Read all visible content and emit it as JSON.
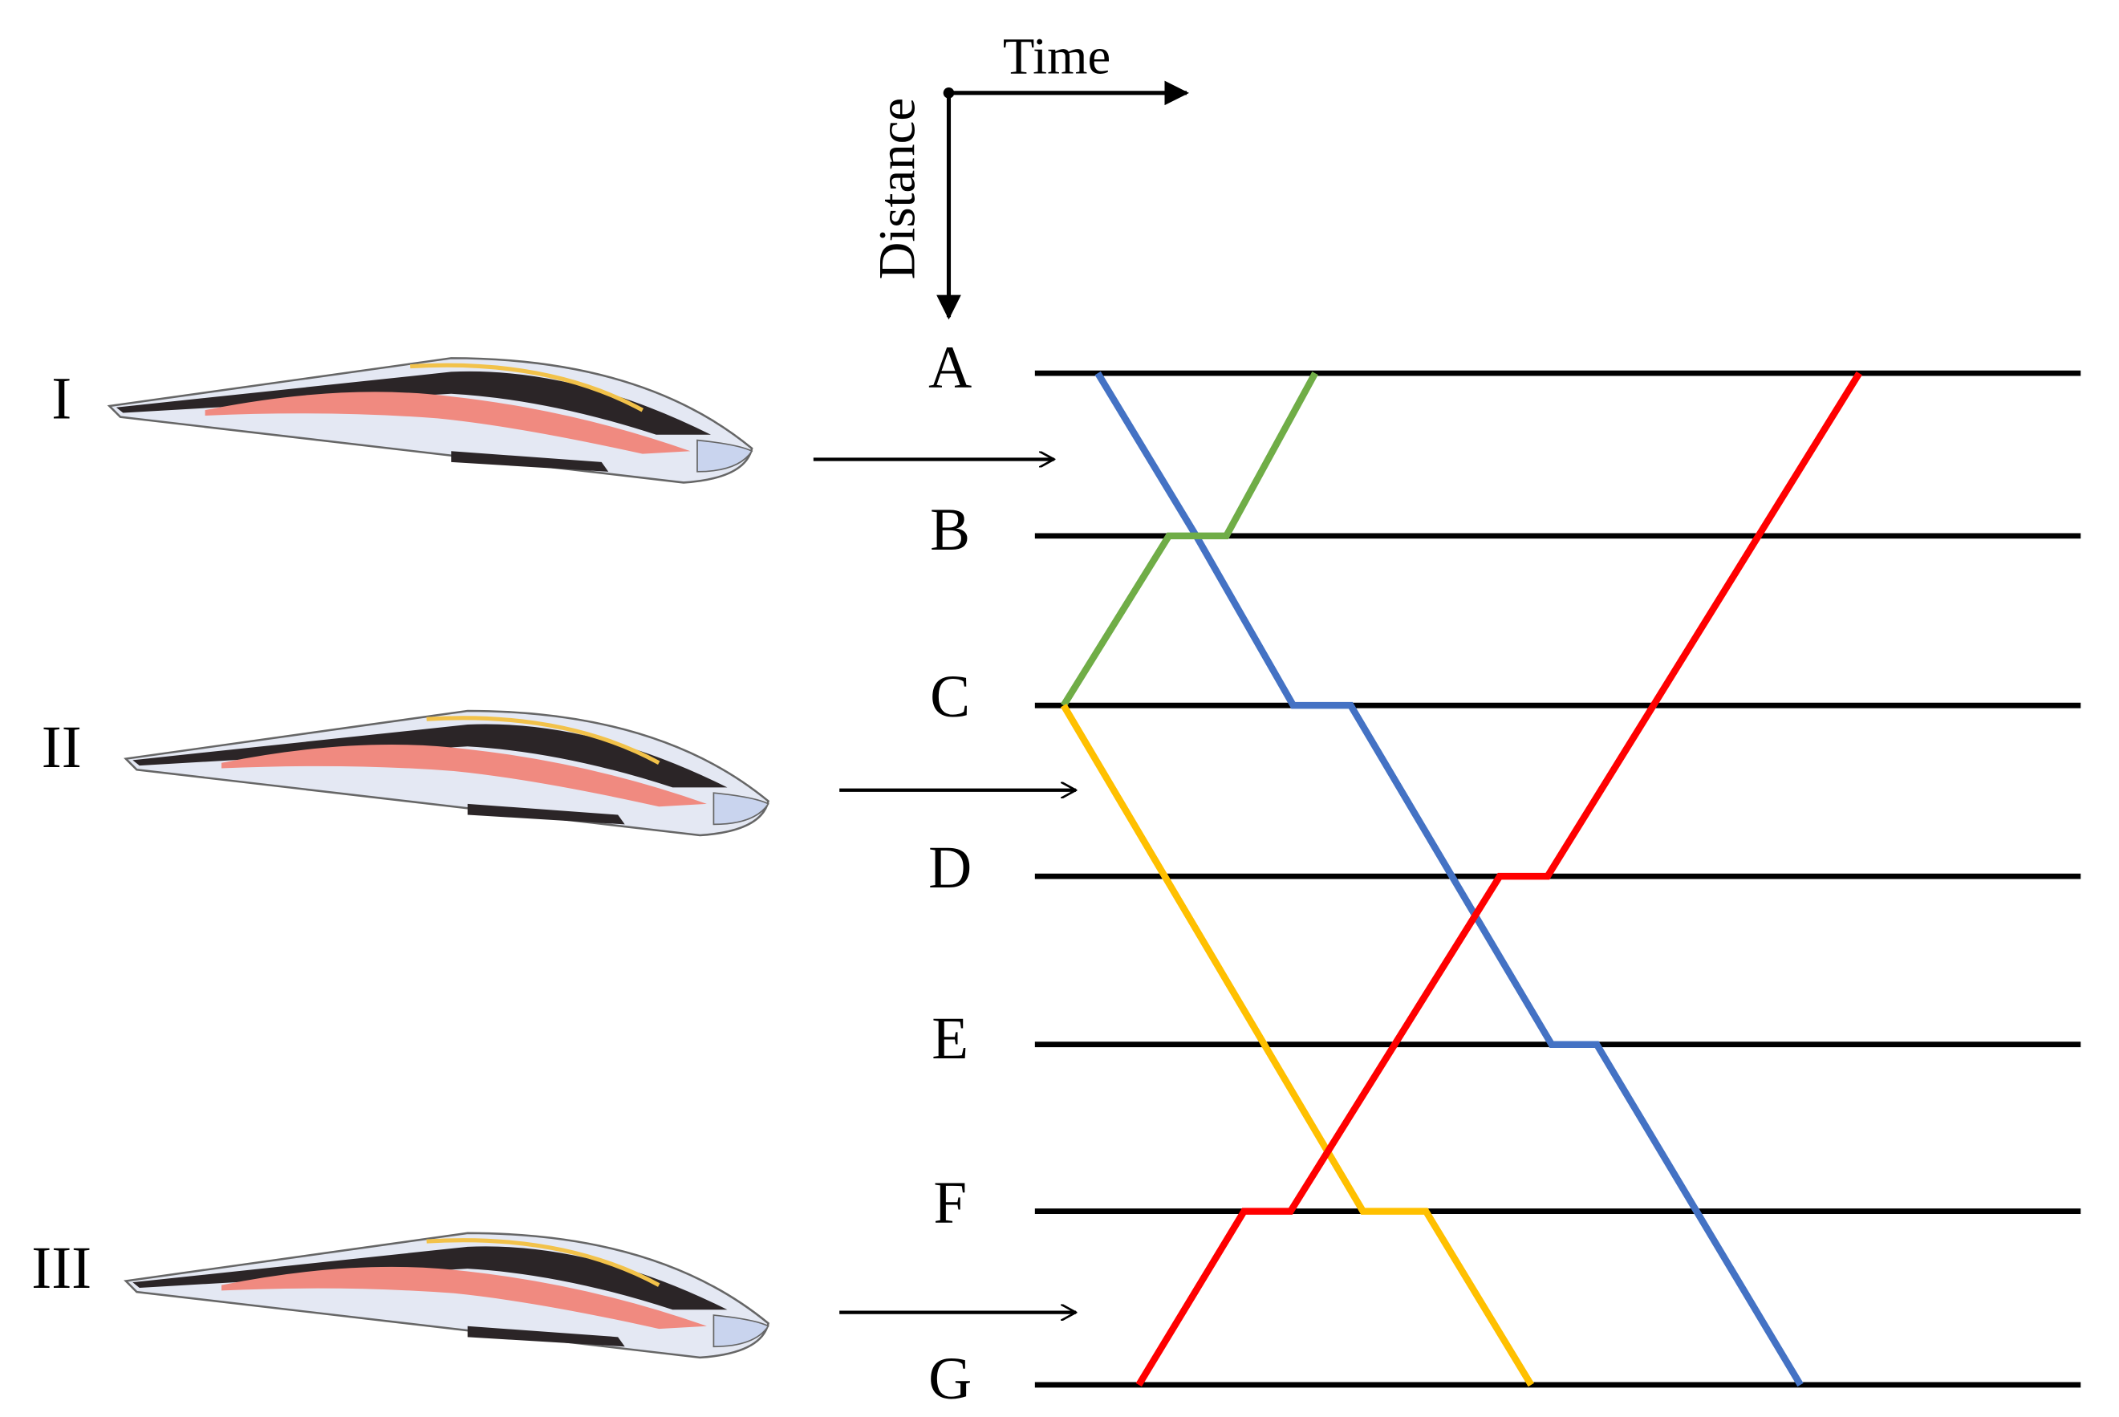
{
  "axes": {
    "time": "Time",
    "distance": "Distance"
  },
  "stations": [
    "A",
    "B",
    "C",
    "D",
    "E",
    "F",
    "G"
  ],
  "trains": [
    "I",
    "II",
    "III"
  ]
}
